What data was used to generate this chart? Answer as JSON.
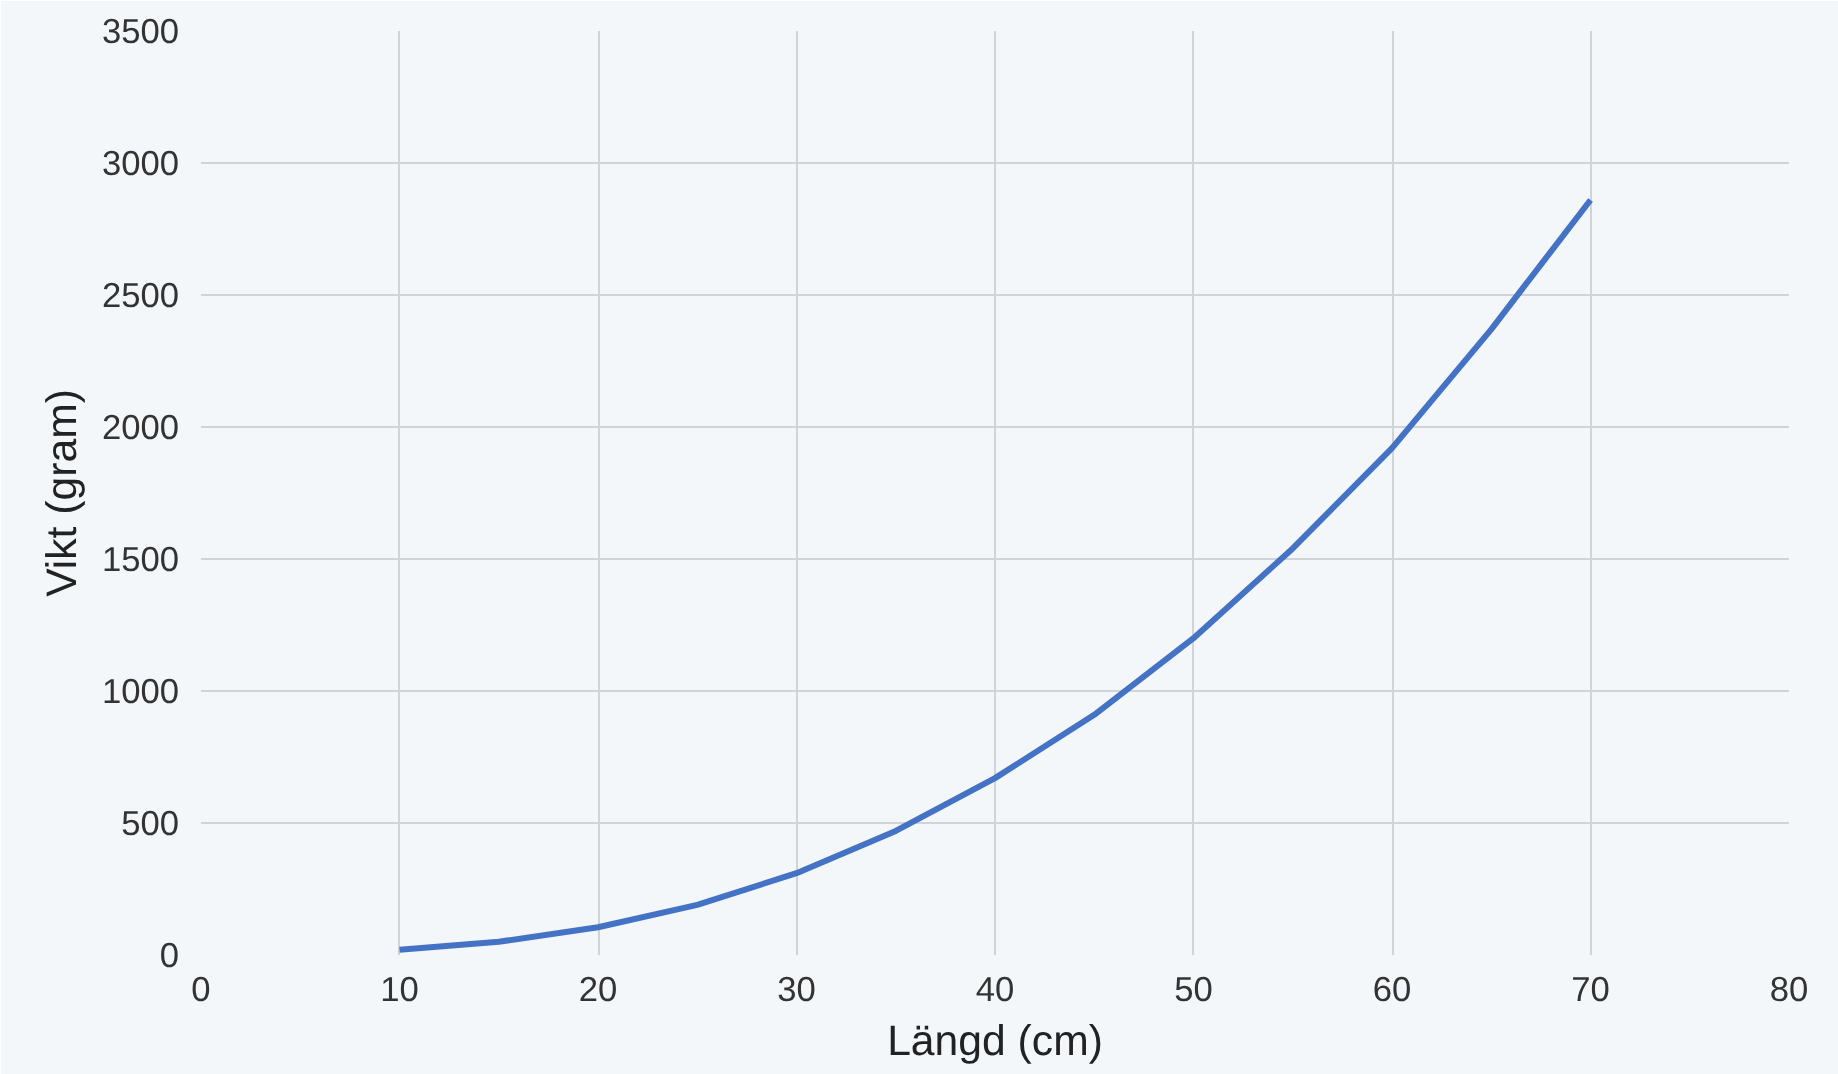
{
  "chart_data": {
    "type": "line",
    "xlabel": "Längd (cm)",
    "ylabel": "Vikt (gram)",
    "x": [
      10,
      15,
      20,
      25,
      30,
      35,
      40,
      45,
      50,
      55,
      60,
      65,
      70
    ],
    "series": [
      {
        "color": "#4472c4",
        "values": [
          20,
          50,
          105,
          190,
          310,
          470,
          670,
          910,
          1200,
          1540,
          1920,
          2370,
          2860
        ]
      }
    ],
    "xlim": [
      0,
      80
    ],
    "xticks": [
      0,
      10,
      20,
      30,
      40,
      50,
      60,
      70,
      80
    ],
    "ylim": [
      0,
      3500
    ],
    "yticks": [
      0,
      500,
      1000,
      1500,
      2000,
      2500,
      3000,
      3500
    ],
    "grid": true,
    "marker": "none",
    "line_style": "solid"
  }
}
